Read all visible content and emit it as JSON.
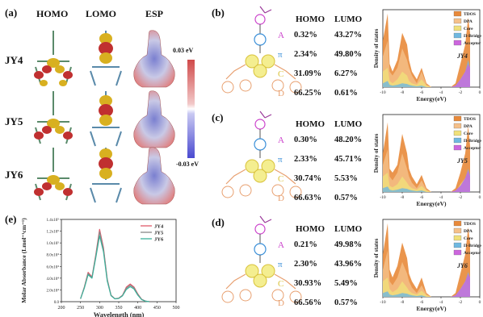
{
  "panel_a": {
    "label": "(a)",
    "col_heads": [
      "HOMO",
      "LOMO",
      "ESP"
    ],
    "rows": [
      "JY4",
      "JY5",
      "JY6"
    ],
    "colorbar_max": "0.03 eV",
    "colorbar_min": "-0.03 eV"
  },
  "dos_panels": [
    {
      "label": "(b)",
      "head_homo": "HOMO",
      "head_lumo": "LUMO",
      "fragments": [
        {
          "letter": "A",
          "homo": "0.32%",
          "lumo": "43.27%",
          "color": "#cc44cc"
        },
        {
          "letter": "π",
          "homo": "2.34%",
          "lumo": "49.80%",
          "color": "#3a8fd8"
        },
        {
          "letter": "C",
          "homo": "31.09%",
          "lumo": "6.27%",
          "color": "#d9c23a"
        },
        {
          "letter": "D",
          "homo": "66.25%",
          "lumo": "0.61%",
          "color": "#e8a070"
        }
      ],
      "chart_label": "JY4"
    },
    {
      "label": "(c)",
      "head_homo": "HOMO",
      "head_lumo": "LUMO",
      "fragments": [
        {
          "letter": "A",
          "homo": "0.30%",
          "lumo": "48.20%",
          "color": "#cc44cc"
        },
        {
          "letter": "π",
          "homo": "2.33%",
          "lumo": "45.71%",
          "color": "#3a8fd8"
        },
        {
          "letter": "C",
          "homo": "30.74%",
          "lumo": "5.53%",
          "color": "#d9c23a"
        },
        {
          "letter": "D",
          "homo": "66.63%",
          "lumo": "0.57%",
          "color": "#e8a070"
        }
      ],
      "chart_label": "JY5"
    },
    {
      "label": "(d)",
      "head_homo": "HOMO",
      "head_lumo": "LUMO",
      "fragments": [
        {
          "letter": "A",
          "homo": "0.21%",
          "lumo": "49.98%",
          "color": "#cc44cc"
        },
        {
          "letter": "π",
          "homo": "2.30%",
          "lumo": "43.96%",
          "color": "#3a8fd8"
        },
        {
          "letter": "C",
          "homo": "30.93%",
          "lumo": "5.49%",
          "color": "#d9c23a"
        },
        {
          "letter": "D",
          "homo": "66.56%",
          "lumo": "0.57%",
          "color": "#e8a070"
        }
      ],
      "chart_label": "JY6"
    }
  ],
  "dos_common": {
    "ylabel": "Density of states",
    "xlabel": "Energy(eV)",
    "xticks": [
      "-10",
      "-8",
      "-6",
      "-4",
      "-2",
      "0"
    ],
    "legend": [
      "TDOS",
      "DPA",
      "Core",
      "Π-Bridge",
      "Acceptor"
    ],
    "legend_colors": [
      "#e8893a",
      "#f5c08a",
      "#f0e07a",
      "#6fb8e0",
      "#cc66dd"
    ]
  },
  "chart_data": [
    {
      "type": "line",
      "panel": "(e)",
      "xlabel": "Wavelength (nm)",
      "ylabel": "Molar Absorbance (Lmol⁻¹cm⁻¹)",
      "xlim": [
        200,
        500
      ],
      "ylim": [
        0,
        140000
      ],
      "xticks": [
        "200",
        "250",
        "300",
        "350",
        "400",
        "450",
        "500"
      ],
      "yticks": [
        "0.0",
        "2.0x10⁴",
        "4.0x10⁴",
        "6.0x10⁴",
        "8.0x10⁴",
        "1.0x10⁵",
        "1.2x10⁵",
        "1.4x10⁵"
      ],
      "x": [
        250,
        260,
        270,
        280,
        290,
        300,
        310,
        320,
        330,
        340,
        350,
        360,
        370,
        380,
        390,
        400,
        410,
        420,
        430
      ],
      "series": [
        {
          "name": "JY4",
          "color": "#e05a6a",
          "values": [
            5000,
            25000,
            50000,
            42000,
            80000,
            123000,
            92000,
            38000,
            11000,
            5000,
            6000,
            11000,
            25000,
            30000,
            25000,
            13000,
            4000,
            1000,
            0
          ]
        },
        {
          "name": "JY5",
          "color": "#888888",
          "values": [
            5000,
            24000,
            48000,
            41000,
            78000,
            119000,
            89000,
            37000,
            10500,
            5000,
            5800,
            10500,
            23000,
            28000,
            23500,
            12000,
            3800,
            900,
            0
          ]
        },
        {
          "name": "JY6",
          "color": "#3cb09a",
          "values": [
            5000,
            23000,
            46000,
            40000,
            75000,
            112000,
            85000,
            35000,
            10000,
            4800,
            5500,
            10000,
            21000,
            25500,
            21500,
            11000,
            3500,
            800,
            0
          ]
        }
      ]
    },
    {
      "type": "area",
      "panel": "(b)",
      "title": "JY4",
      "x": [
        -10,
        -9.5,
        -9.3,
        -9,
        -8.5,
        -8,
        -7.5,
        -7.3,
        -7,
        -6.5,
        -6,
        -5.5,
        -5,
        -4.5,
        -4,
        -3.5,
        -3,
        -2.5,
        -2,
        -1.5,
        -1.2,
        -1
      ],
      "series": [
        {
          "name": "TDOS",
          "values": [
            0.6,
            0.95,
            0.3,
            0.2,
            0.35,
            0.7,
            0.55,
            0.35,
            0.2,
            0.1,
            0.25,
            0.05,
            0.0,
            0.0,
            0.0,
            0.0,
            0.0,
            0.05,
            0.3,
            0.55,
            0.9,
            0.7
          ]
        },
        {
          "name": "DPA",
          "values": [
            0.4,
            0.6,
            0.2,
            0.15,
            0.25,
            0.5,
            0.35,
            0.25,
            0.15,
            0.05,
            0.2,
            0.03,
            0,
            0,
            0,
            0,
            0,
            0,
            0.05,
            0.1,
            0.1,
            0.05
          ]
        },
        {
          "name": "Core",
          "values": [
            0.2,
            0.25,
            0.08,
            0.05,
            0.1,
            0.2,
            0.15,
            0.08,
            0.05,
            0.03,
            0.1,
            0.02,
            0,
            0,
            0,
            0,
            0,
            0,
            0.1,
            0.2,
            0.15,
            0.1
          ]
        },
        {
          "name": "Π-Bridge",
          "values": [
            0.05,
            0.08,
            0.03,
            0.02,
            0.03,
            0.05,
            0.04,
            0.03,
            0.02,
            0.01,
            0.02,
            0,
            0,
            0,
            0,
            0,
            0,
            0.02,
            0.1,
            0.2,
            0.35,
            0.25
          ]
        },
        {
          "name": "Acceptor",
          "values": [
            0,
            0,
            0,
            0,
            0,
            0,
            0,
            0,
            0,
            0,
            0,
            0,
            0,
            0,
            0,
            0,
            0,
            0.02,
            0.1,
            0.2,
            0.3,
            0.25
          ]
        }
      ]
    },
    {
      "type": "area",
      "panel": "(c)",
      "title": "JY5",
      "x": [
        -10,
        -9.5,
        -9.3,
        -9,
        -8.5,
        -8,
        -7.5,
        -7.3,
        -7,
        -6.5,
        -6,
        -5.5,
        -5,
        -4.5,
        -4,
        -3.5,
        -3,
        -2.5,
        -2,
        -1.5,
        -1.2,
        -1
      ],
      "series": [
        {
          "name": "TDOS",
          "values": [
            0.5,
            0.9,
            0.3,
            0.25,
            0.35,
            0.75,
            0.5,
            0.3,
            0.2,
            0.1,
            0.22,
            0.05,
            0,
            0,
            0,
            0,
            0,
            0.05,
            0.25,
            0.5,
            0.85,
            0.6
          ]
        },
        {
          "name": "DPA",
          "values": [
            0.35,
            0.55,
            0.2,
            0.15,
            0.25,
            0.5,
            0.3,
            0.2,
            0.12,
            0.05,
            0.15,
            0.03,
            0,
            0,
            0,
            0,
            0,
            0,
            0.05,
            0.1,
            0.1,
            0.05
          ]
        },
        {
          "name": "Core",
          "values": [
            0.2,
            0.25,
            0.08,
            0.06,
            0.1,
            0.2,
            0.12,
            0.08,
            0.05,
            0.03,
            0.08,
            0.02,
            0,
            0,
            0,
            0,
            0,
            0,
            0.1,
            0.18,
            0.15,
            0.1
          ]
        },
        {
          "name": "Π-Bridge",
          "values": [
            0.05,
            0.07,
            0.03,
            0.02,
            0.03,
            0.05,
            0.04,
            0.03,
            0.02,
            0.01,
            0.02,
            0,
            0,
            0,
            0,
            0,
            0,
            0.02,
            0.08,
            0.18,
            0.3,
            0.22
          ]
        },
        {
          "name": "Acceptor",
          "values": [
            0,
            0,
            0,
            0,
            0,
            0,
            0,
            0,
            0,
            0,
            0,
            0,
            0,
            0,
            0,
            0,
            0,
            0.02,
            0.08,
            0.18,
            0.28,
            0.2
          ]
        }
      ]
    },
    {
      "type": "area",
      "panel": "(d)",
      "title": "JY6",
      "x": [
        -10,
        -9.5,
        -9.3,
        -9,
        -8.5,
        -8,
        -7.5,
        -7.3,
        -7,
        -6.5,
        -6,
        -5.5,
        -5,
        -4.5,
        -4,
        -3.5,
        -3,
        -2.5,
        -2,
        -1.5,
        -1.2,
        -1
      ],
      "series": [
        {
          "name": "TDOS",
          "values": [
            0.55,
            0.95,
            0.35,
            0.25,
            0.4,
            0.7,
            0.5,
            0.3,
            0.2,
            0.1,
            0.25,
            0.05,
            0,
            0,
            0,
            0,
            0,
            0.05,
            0.3,
            0.55,
            0.9,
            0.7
          ]
        },
        {
          "name": "DPA",
          "values": [
            0.35,
            0.6,
            0.2,
            0.15,
            0.25,
            0.45,
            0.3,
            0.2,
            0.12,
            0.05,
            0.15,
            0.03,
            0,
            0,
            0,
            0,
            0,
            0,
            0.05,
            0.1,
            0.1,
            0.05
          ]
        },
        {
          "name": "Core",
          "values": [
            0.2,
            0.25,
            0.1,
            0.06,
            0.1,
            0.2,
            0.12,
            0.08,
            0.05,
            0.03,
            0.08,
            0.02,
            0,
            0,
            0,
            0,
            0,
            0,
            0.1,
            0.2,
            0.15,
            0.1
          ]
        },
        {
          "name": "Π-Bridge",
          "values": [
            0.05,
            0.07,
            0.03,
            0.02,
            0.03,
            0.05,
            0.04,
            0.03,
            0.02,
            0.01,
            0.02,
            0,
            0,
            0,
            0,
            0,
            0,
            0.02,
            0.1,
            0.2,
            0.32,
            0.25
          ]
        },
        {
          "name": "Acceptor",
          "values": [
            0,
            0,
            0,
            0,
            0,
            0,
            0,
            0,
            0,
            0,
            0,
            0,
            0,
            0,
            0,
            0,
            0,
            0.02,
            0.1,
            0.2,
            0.3,
            0.25
          ]
        }
      ]
    }
  ]
}
